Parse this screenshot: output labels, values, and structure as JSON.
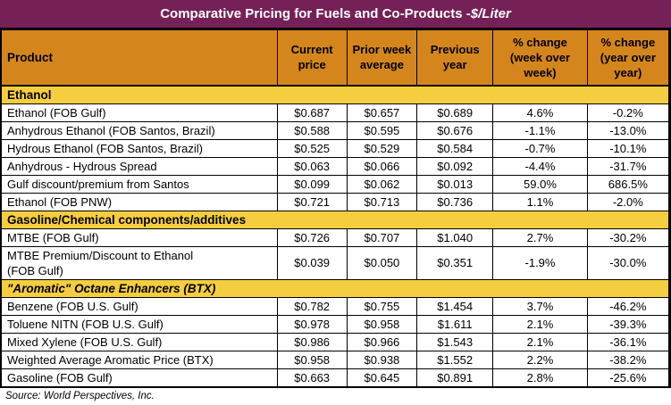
{
  "title": {
    "main": "Comparative Pricing for Fuels and Co-Products - ",
    "unit": "$/Liter"
  },
  "colors": {
    "title_bg": "#752157",
    "header_bg": "#D4861C",
    "section_bg": "#F5CE3F",
    "border": "#000000",
    "title_text": "#FFFFFF",
    "body_text": "#000000"
  },
  "source": "Source: World Perspectives, Inc.",
  "table": {
    "columns": [
      "Product",
      "Current price",
      "Prior week average",
      "Previous year",
      "% change (week over week)",
      "% change (year over year)"
    ],
    "sections": [
      {
        "label": "Ethanol",
        "italic": false,
        "rows": [
          {
            "product": "Ethanol (FOB Gulf)",
            "current": "$0.687",
            "prior": "$0.657",
            "previous": "$0.689",
            "wow": "4.6%",
            "yoy": "-0.2%"
          },
          {
            "product": "Anhydrous Ethanol (FOB Santos, Brazil)",
            "current": "$0.588",
            "prior": "$0.595",
            "previous": "$0.676",
            "wow": "-1.1%",
            "yoy": "-13.0%"
          },
          {
            "product": "Hydrous Ethanol (FOB Santos, Brazil)",
            "current": "$0.525",
            "prior": "$0.529",
            "previous": "$0.584",
            "wow": "-0.7%",
            "yoy": "-10.1%"
          },
          {
            "product": "Anhydrous - Hydrous Spread",
            "current": "$0.063",
            "prior": "$0.066",
            "previous": "$0.092",
            "wow": "-4.4%",
            "yoy": "-31.7%"
          },
          {
            "product": "Gulf discount/premium from Santos",
            "current": "$0.099",
            "prior": "$0.062",
            "previous": "$0.013",
            "wow": "59.0%",
            "yoy": "686.5%"
          },
          {
            "product": "Ethanol (FOB PNW)",
            "current": "$0.721",
            "prior": "$0.713",
            "previous": "$0.736",
            "wow": "1.1%",
            "yoy": "-2.0%"
          }
        ]
      },
      {
        "label": "Gasoline/Chemical components/additives",
        "italic": false,
        "rows": [
          {
            "product": "MTBE (FOB Gulf)",
            "current": "$0.726",
            "prior": "$0.707",
            "previous": "$1.040",
            "wow": "2.7%",
            "yoy": "-30.2%"
          },
          {
            "product": "MTBE Premium/Discount to Ethanol\n(FOB Gulf)",
            "current": "$0.039",
            "prior": "$0.050",
            "previous": "$0.351",
            "wow": "-1.9%",
            "yoy": "-30.0%"
          }
        ]
      },
      {
        "label": "\"Aromatic\" Octane Enhancers (BTX)",
        "italic": true,
        "rows": [
          {
            "product": "Benzene (FOB U.S. Gulf)",
            "current": "$0.782",
            "prior": "$0.755",
            "previous": "$1.454",
            "wow": "3.7%",
            "yoy": "-46.2%"
          },
          {
            "product": "Toluene NITN (FOB U.S. Gulf)",
            "current": "$0.978",
            "prior": "$0.958",
            "previous": "$1.611",
            "wow": "2.1%",
            "yoy": "-39.3%"
          },
          {
            "product": "Mixed Xylene (FOB U.S. Gulf)",
            "current": "$0.986",
            "prior": "$0.966",
            "previous": "$1.543",
            "wow": "2.1%",
            "yoy": "-36.1%"
          },
          {
            "product": "Weighted Average Aromatic Price (BTX)",
            "current": "$0.958",
            "prior": "$0.938",
            "previous": "$1.552",
            "wow": "2.2%",
            "yoy": "-38.2%"
          },
          {
            "product": "Gasoline (FOB Gulf)",
            "current": "$0.663",
            "prior": "$0.645",
            "previous": "$0.891",
            "wow": "2.8%",
            "yoy": "-25.6%"
          }
        ]
      }
    ]
  },
  "chart_data": {
    "type": "table",
    "title": "Comparative Pricing for Fuels and Co-Products - $/Liter",
    "columns": [
      "Product",
      "Current price",
      "Prior week average",
      "Previous year",
      "% change (week over week)",
      "% change (year over year)"
    ],
    "rows": [
      [
        "Ethanol (FOB Gulf)",
        0.687,
        0.657,
        0.689,
        4.6,
        -0.2
      ],
      [
        "Anhydrous Ethanol (FOB Santos, Brazil)",
        0.588,
        0.595,
        0.676,
        -1.1,
        -13.0
      ],
      [
        "Hydrous Ethanol (FOB Santos, Brazil)",
        0.525,
        0.529,
        0.584,
        -0.7,
        -10.1
      ],
      [
        "Anhydrous - Hydrous Spread",
        0.063,
        0.066,
        0.092,
        -4.4,
        -31.7
      ],
      [
        "Gulf discount/premium from Santos",
        0.099,
        0.062,
        0.013,
        59.0,
        686.5
      ],
      [
        "Ethanol (FOB PNW)",
        0.721,
        0.713,
        0.736,
        1.1,
        -2.0
      ],
      [
        "MTBE (FOB Gulf)",
        0.726,
        0.707,
        1.04,
        2.7,
        -30.2
      ],
      [
        "MTBE Premium/Discount to Ethanol (FOB Gulf)",
        0.039,
        0.05,
        0.351,
        -1.9,
        -30.0
      ],
      [
        "Benzene (FOB U.S. Gulf)",
        0.782,
        0.755,
        1.454,
        3.7,
        -46.2
      ],
      [
        "Toluene NITN (FOB U.S. Gulf)",
        0.978,
        0.958,
        1.611,
        2.1,
        -39.3
      ],
      [
        "Mixed Xylene (FOB U.S. Gulf)",
        0.986,
        0.966,
        1.543,
        2.1,
        -36.1
      ],
      [
        "Weighted Average Aromatic Price (BTX)",
        0.958,
        0.938,
        1.552,
        2.2,
        -38.2
      ],
      [
        "Gasoline (FOB Gulf)",
        0.663,
        0.645,
        0.891,
        2.8,
        -25.6
      ]
    ],
    "sections": {
      "Ethanol": [
        0,
        5
      ],
      "Gasoline/Chemical components/additives": [
        6,
        7
      ],
      "\"Aromatic\" Octane Enhancers (BTX)": [
        8,
        12
      ]
    },
    "units": "$/Liter",
    "source": "Source: World Perspectives, Inc."
  }
}
